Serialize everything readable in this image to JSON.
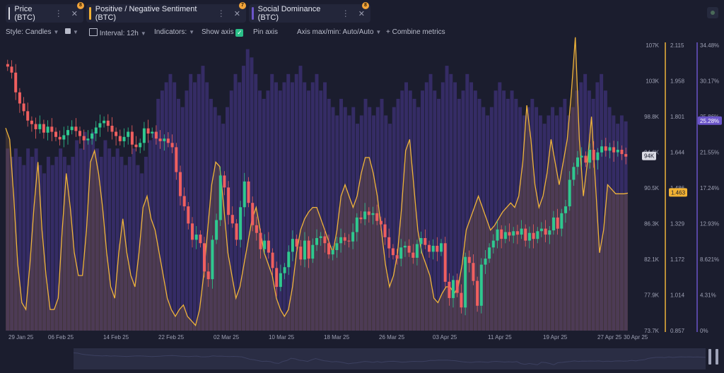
{
  "tabs": [
    {
      "label": "Price (BTC)",
      "badge": "8",
      "color": "#d8d8e0"
    },
    {
      "label": "Positive / Negative Sentiment (BTC)",
      "badge": "7",
      "color": "#f2b233"
    },
    {
      "label": "Social Dominance (BTC)",
      "badge": "8",
      "color": "#6b55c9"
    }
  ],
  "toolbar": {
    "style": "Style: Candles",
    "interval": "Interval: 12h",
    "indicators": "Indicators:",
    "show_axis": "Show axis",
    "pin_axis": "Pin axis",
    "axis_maxmin": "Axis max/min: Auto/Auto",
    "combine": "Combine metrics"
  },
  "chart_data": {
    "type": "combined",
    "x_labels": [
      "29 Jan 25",
      "06 Feb 25",
      "14 Feb 25",
      "22 Feb 25",
      "02 Mar 25",
      "10 Mar 25",
      "18 Mar 25",
      "26 Mar 25",
      "03 Apr 25",
      "11 Apr 25",
      "19 Apr 25",
      "27 Apr 25",
      "30 Apr 25"
    ],
    "price_axis": {
      "ticks": [
        "107K",
        "103K",
        "98.8K",
        "94.6K",
        "90.5K",
        "86.3K",
        "82.1K",
        "77.9K",
        "73.7K"
      ],
      "min": 73700,
      "max": 107000,
      "last_label": "94K",
      "last": 94000
    },
    "sentiment_axis": {
      "ticks": [
        "2.115",
        "1.958",
        "1.801",
        "1.644",
        "1.486",
        "1.329",
        "1.172",
        "1.014",
        "0.857"
      ],
      "min": 0.857,
      "max": 2.115,
      "last_label": "1.463",
      "last": 1.463
    },
    "dominance_axis": {
      "ticks": [
        "34.48%",
        "30.17%",
        "25.86%",
        "21.55%",
        "17.24%",
        "12.93%",
        "8.621%",
        "4.31%",
        "0%"
      ],
      "min": 0,
      "max": 34.48,
      "last_label": "25.28%",
      "last": 25.28
    },
    "series": [
      {
        "name": "Price (BTC)",
        "kind": "candles",
        "close": [
          104500,
          103800,
          101500,
          100200,
          99300,
          98200,
          97800,
          97200,
          97800,
          96800,
          97500,
          96900,
          96300,
          96000,
          96500,
          97100,
          97500,
          97000,
          96400,
          95900,
          96100,
          96700,
          97400,
          97900,
          98200,
          97600,
          96900,
          96400,
          95800,
          96300,
          96900,
          95400,
          95100,
          95600,
          97300,
          96700,
          96900,
          96100,
          95800,
          96100,
          95600,
          95100,
          92200,
          89400,
          88200,
          86200,
          84300,
          84900,
          83900,
          80600,
          79700,
          84300,
          86600,
          91800,
          90400,
          87200,
          86200,
          84300,
          88100,
          91100,
          88600,
          86000,
          85100,
          83200,
          84200,
          82800,
          81000,
          78800,
          80400,
          81100,
          82900,
          84400,
          83500,
          82000,
          84200,
          82100,
          83700,
          84500,
          84700,
          83900,
          82600,
          83100,
          83900,
          84600,
          84200,
          84100,
          85200,
          86900,
          86700,
          87600,
          87200,
          87400,
          86500,
          86100,
          84600,
          83300,
          82500,
          82100,
          83400,
          83600,
          82800,
          82200,
          83800,
          84500,
          83700,
          82900,
          83600,
          82900,
          83900,
          79400,
          77500,
          79600,
          78100,
          76400,
          82300,
          81600,
          79500,
          76600,
          81400,
          82100,
          83400,
          84200,
          85500,
          84400,
          85200,
          84800,
          85300,
          84900,
          85600,
          84200,
          85100,
          84400,
          85300,
          85600,
          84900,
          85400,
          86900,
          85600,
          87400,
          88200,
          91300,
          92800,
          93900,
          94100,
          93300,
          94800,
          93600,
          94500,
          95200,
          94700,
          95100,
          94500,
          94800,
          94300,
          94000
        ]
      },
      {
        "name": "Positive / Negative Sentiment (BTC)",
        "kind": "line",
        "values": [
          1.75,
          1.7,
          1.45,
          1.15,
          0.98,
          0.95,
          1.15,
          1.4,
          1.6,
          1.3,
          1.1,
          0.95,
          0.95,
          1.0,
          1.3,
          1.55,
          1.4,
          1.2,
          1.1,
          1.1,
          1.3,
          1.6,
          1.65,
          1.55,
          1.4,
          1.2,
          1.05,
          1.0,
          1.2,
          1.35,
          1.2,
          1.1,
          1.05,
          1.2,
          1.4,
          1.45,
          1.35,
          1.3,
          1.2,
          1.1,
          1.0,
          0.95,
          0.92,
          0.95,
          0.97,
          0.92,
          0.9,
          0.88,
          0.95,
          1.1,
          1.3,
          1.5,
          1.6,
          1.58,
          1.4,
          1.2,
          1.1,
          1.0,
          1.05,
          1.15,
          1.25,
          1.35,
          1.4,
          1.3,
          1.2,
          1.15,
          1.1,
          1.0,
          0.95,
          0.92,
          0.95,
          1.05,
          1.2,
          1.3,
          1.35,
          1.38,
          1.4,
          1.4,
          1.35,
          1.3,
          1.25,
          1.2,
          1.3,
          1.45,
          1.5,
          1.45,
          1.4,
          1.45,
          1.55,
          1.62,
          1.62,
          1.55,
          1.45,
          1.3,
          1.15,
          1.05,
          1.1,
          1.2,
          1.4,
          1.65,
          1.7,
          1.5,
          1.3,
          1.2,
          1.15,
          1.1,
          1.0,
          0.98,
          1.02,
          1.05,
          1.05,
          1.02,
          1.05,
          1.15,
          1.3,
          1.35,
          1.4,
          1.45,
          1.4,
          1.35,
          1.3,
          1.32,
          1.35,
          1.38,
          1.4,
          1.42,
          1.4,
          1.45,
          1.6,
          1.85,
          1.7,
          1.5,
          1.4,
          1.45,
          1.55,
          1.7,
          1.6,
          1.5,
          1.6,
          1.7,
          1.9,
          2.15,
          1.7,
          1.45,
          1.6,
          1.8,
          1.5,
          1.2,
          1.3,
          1.5,
          1.48,
          1.46,
          1.46,
          1.46,
          1.463
        ]
      },
      {
        "name": "Social Dominance (BTC)",
        "kind": "bars",
        "values": [
          22,
          21,
          22,
          21,
          20,
          22,
          21,
          22,
          20,
          19,
          21,
          20,
          21,
          22,
          21,
          20,
          21,
          23,
          22,
          24,
          23,
          24,
          22,
          21,
          23,
          22,
          21,
          22,
          21,
          20,
          21,
          22,
          20,
          19,
          21,
          23,
          24,
          28,
          29,
          30,
          31,
          30,
          28,
          27,
          29,
          31,
          30,
          31,
          32,
          30,
          28,
          27,
          26,
          25,
          27,
          29,
          31,
          30,
          32,
          34,
          33,
          31,
          29,
          28,
          29,
          31,
          30,
          29,
          30,
          31,
          30,
          31,
          32,
          30,
          29,
          30,
          31,
          29,
          30,
          28,
          27,
          26,
          28,
          27,
          26,
          27,
          25,
          26,
          28,
          27,
          26,
          27,
          28,
          26,
          25,
          27,
          28,
          29,
          30,
          29,
          28,
          27,
          29,
          30,
          31,
          29,
          28,
          30,
          32,
          31,
          30,
          28,
          29,
          31,
          30,
          29,
          28,
          27,
          26,
          27,
          29,
          30,
          29,
          28,
          29,
          28,
          27,
          26,
          27,
          28,
          27,
          26,
          25,
          26,
          27,
          26,
          27,
          28,
          26,
          27,
          29,
          30,
          31,
          29,
          28,
          30,
          31,
          29,
          27,
          26,
          25,
          26,
          25.28
        ]
      }
    ]
  }
}
